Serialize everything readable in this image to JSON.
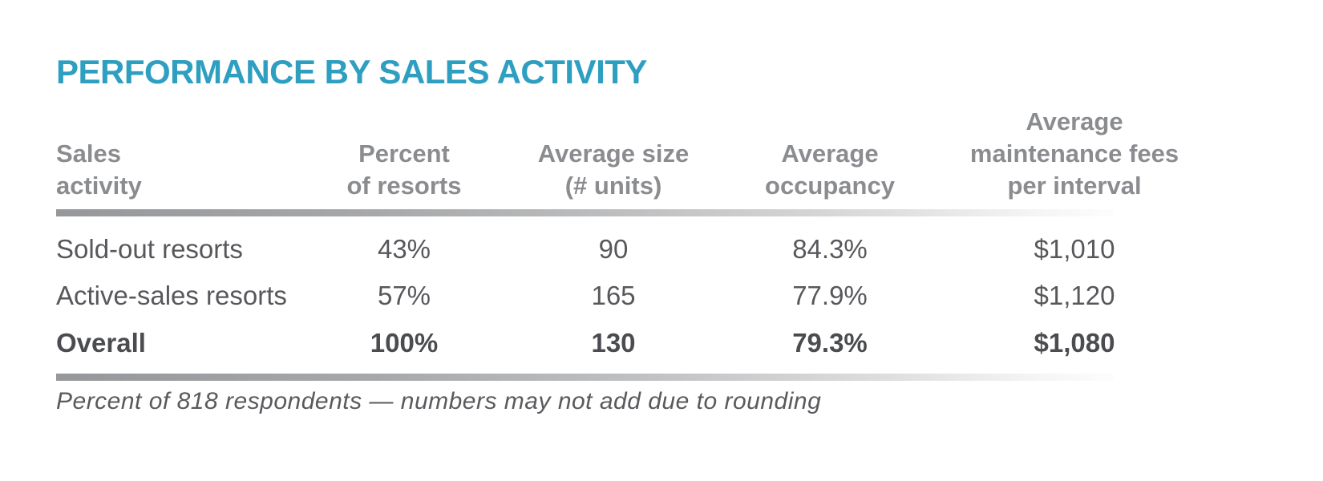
{
  "title": "PERFORMANCE BY SALES ACTIVITY",
  "columns": [
    {
      "id": "sales-activity",
      "lines": [
        "Sales",
        "activity"
      ]
    },
    {
      "id": "percent-of-resorts",
      "lines": [
        "Percent",
        "of resorts"
      ]
    },
    {
      "id": "average-size",
      "lines": [
        "Average size",
        "(# units)"
      ]
    },
    {
      "id": "average-occupancy",
      "lines": [
        "Average",
        "occupancy"
      ]
    },
    {
      "id": "average-maintenance-fees",
      "lines": [
        "Average",
        "maintenance fees",
        "per interval"
      ]
    }
  ],
  "rows": [
    {
      "cells": [
        "Sold-out resorts",
        "43%",
        "90",
        "84.3%",
        "$1,010"
      ],
      "bold": false
    },
    {
      "cells": [
        "Active-sales resorts",
        "57%",
        "165",
        "77.9%",
        "$1,120"
      ],
      "bold": false
    },
    {
      "cells": [
        "Overall",
        "100%",
        "130",
        "79.3%",
        "$1,080"
      ],
      "bold": true
    }
  ],
  "footnote": "Percent of 818 respondents — numbers may not add due to rounding",
  "colors": {
    "title": "#2E9EC1",
    "header_text": "#8A8C8F",
    "body_text": "#57585B",
    "rule_dark": "#95979A",
    "rule_light": "#FDFDFD",
    "background": "#FFFFFF"
  },
  "chart_data": {
    "type": "table",
    "title": "PERFORMANCE BY SALES ACTIVITY",
    "columns": [
      "Sales activity",
      "Percent of resorts",
      "Average size (# units)",
      "Average occupancy",
      "Average maintenance fees per interval"
    ],
    "rows": [
      [
        "Sold-out resorts",
        "43%",
        90,
        "84.3%",
        "$1,010"
      ],
      [
        "Active-sales resorts",
        "57%",
        165,
        "77.9%",
        "$1,120"
      ],
      [
        "Overall",
        "100%",
        130,
        "79.3%",
        "$1,080"
      ]
    ],
    "footnote": "Percent of 818 respondents — numbers may not add due to rounding"
  }
}
